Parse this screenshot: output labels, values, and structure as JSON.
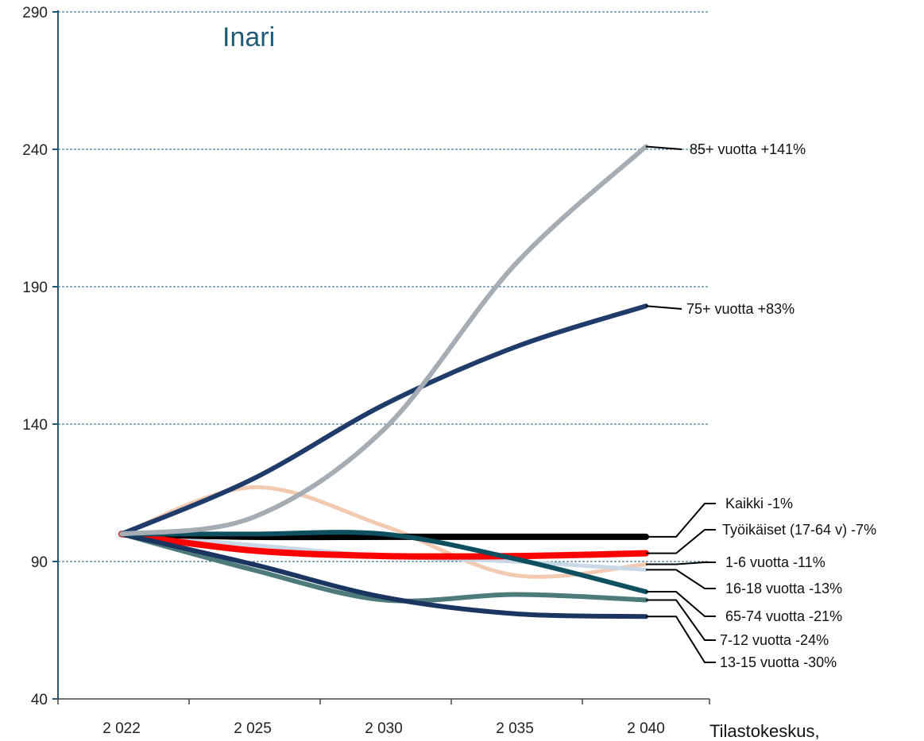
{
  "chart_data": {
    "type": "line",
    "title": "Inari",
    "source": "Tilastokeskus,",
    "x_tick_labels": [
      "2 022",
      "2 025",
      "2 030",
      "2 035",
      "2 040"
    ],
    "y_tick_labels": [
      "40",
      "90",
      "140",
      "190",
      "240",
      "290"
    ],
    "ylim": [
      40,
      290
    ],
    "grid": "horizontal dashed",
    "legend": "labels at line ends (right)",
    "series": [
      {
        "name": "85+ vuotta +141%",
        "color": "#a5acb3",
        "values": [
          100,
          106,
          138,
          198,
          241
        ]
      },
      {
        "name": "75+ vuotta +83%",
        "color": "#1e3b6a",
        "values": [
          100,
          120,
          147,
          168,
          183
        ]
      },
      {
        "name": "Kaikki -1%",
        "color": "#000000",
        "values": [
          100,
          99,
          99,
          99,
          99
        ]
      },
      {
        "name": "Työikäiset (17-64 v) -7%",
        "color": "#ff0000",
        "values": [
          100,
          94,
          92,
          92,
          93
        ]
      },
      {
        "name": "1-6 vuotta -11%",
        "color": "#f2c9b1",
        "values": [
          100,
          117,
          103,
          85,
          89
        ]
      },
      {
        "name": "16-18 vuotta -13%",
        "color": "#c8d8e6",
        "values": [
          100,
          96,
          92,
          90,
          87
        ]
      },
      {
        "name": "65-74 vuotta -21%",
        "color": "#0f5060",
        "values": [
          100,
          100,
          100,
          91,
          79
        ]
      },
      {
        "name": "7-12 vuotta -24%",
        "color": "#4d7a7a",
        "values": [
          100,
          87,
          76,
          78,
          76
        ]
      },
      {
        "name": "13-15 vuotta -30%",
        "color": "#1a3560",
        "values": [
          100,
          89,
          77,
          71,
          70
        ]
      }
    ]
  },
  "colors": {
    "axis": "#1f5b76",
    "grid": "#1f5b76",
    "title": "#1f5b76"
  }
}
